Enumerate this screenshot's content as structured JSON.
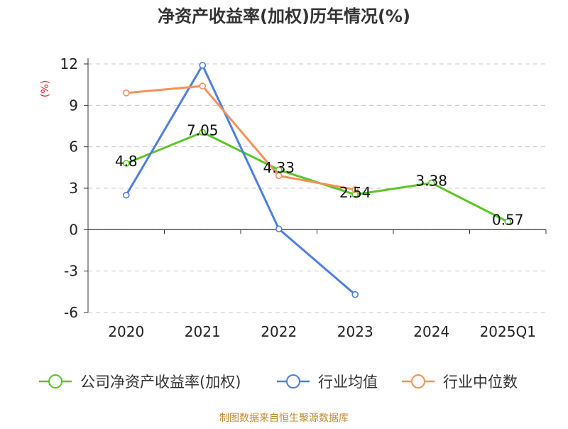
{
  "chart_data": {
    "type": "line",
    "title": "净资产收益率(加权)历年情况(%)",
    "unit_label": "(%)",
    "categories": [
      "2020",
      "2021",
      "2022",
      "2023",
      "2024",
      "2025Q1"
    ],
    "ylim": [
      -6,
      12
    ],
    "yticks": [
      "12",
      "9",
      "6",
      "3",
      "0",
      "-3",
      "-6"
    ],
    "grid": true,
    "legend_position": "bottom",
    "series": [
      {
        "name": "公司净资产收益率(加权)",
        "color": "#5cc527",
        "values": [
          4.8,
          7.05,
          4.33,
          2.54,
          3.38,
          0.57
        ],
        "labels": [
          "4.8",
          "7.05",
          "4.33",
          "2.54",
          "3.38",
          "0.57"
        ]
      },
      {
        "name": "行业均值",
        "color": "#4f7fdc",
        "values": [
          2.5,
          11.9,
          0.05,
          -4.7,
          null,
          null
        ]
      },
      {
        "name": "行业中位数",
        "color": "#f5915b",
        "values": [
          9.9,
          10.4,
          3.9,
          2.9,
          null,
          null
        ]
      }
    ],
    "source": "制图数据来自恒生聚源数据库"
  }
}
